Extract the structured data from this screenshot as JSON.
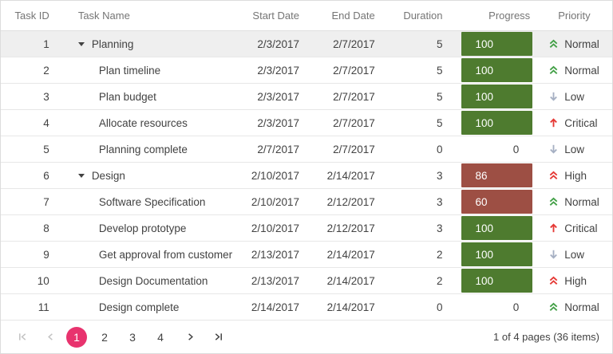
{
  "table": {
    "columns": {
      "id": {
        "label": "Task ID"
      },
      "name": {
        "label": "Task Name"
      },
      "start": {
        "label": "Start Date"
      },
      "end": {
        "label": "End Date"
      },
      "duration": {
        "label": "Duration"
      },
      "progress": {
        "label": "Progress"
      },
      "priority": {
        "label": "Priority"
      }
    },
    "rows": [
      {
        "id": "1",
        "name": "Planning",
        "parent": true,
        "expanded": true,
        "selected": true,
        "start": "2/3/2017",
        "end": "2/7/2017",
        "duration": "5",
        "progress": 100,
        "priority": "Normal"
      },
      {
        "id": "2",
        "name": "Plan timeline",
        "parent": false,
        "selected": false,
        "start": "2/3/2017",
        "end": "2/7/2017",
        "duration": "5",
        "progress": 100,
        "priority": "Normal"
      },
      {
        "id": "3",
        "name": "Plan budget",
        "parent": false,
        "selected": false,
        "start": "2/3/2017",
        "end": "2/7/2017",
        "duration": "5",
        "progress": 100,
        "priority": "Low"
      },
      {
        "id": "4",
        "name": "Allocate resources",
        "parent": false,
        "selected": false,
        "start": "2/3/2017",
        "end": "2/7/2017",
        "duration": "5",
        "progress": 100,
        "priority": "Critical"
      },
      {
        "id": "5",
        "name": "Planning complete",
        "parent": false,
        "selected": false,
        "start": "2/7/2017",
        "end": "2/7/2017",
        "duration": "0",
        "progress": 0,
        "priority": "Low"
      },
      {
        "id": "6",
        "name": "Design",
        "parent": true,
        "expanded": true,
        "selected": false,
        "start": "2/10/2017",
        "end": "2/14/2017",
        "duration": "3",
        "progress": 86,
        "priority": "High"
      },
      {
        "id": "7",
        "name": "Software Specification",
        "parent": false,
        "selected": false,
        "start": "2/10/2017",
        "end": "2/12/2017",
        "duration": "3",
        "progress": 60,
        "priority": "Normal"
      },
      {
        "id": "8",
        "name": "Develop prototype",
        "parent": false,
        "selected": false,
        "start": "2/10/2017",
        "end": "2/12/2017",
        "duration": "3",
        "progress": 100,
        "priority": "Critical"
      },
      {
        "id": "9",
        "name": "Get approval from customer",
        "parent": false,
        "selected": false,
        "start": "2/13/2017",
        "end": "2/14/2017",
        "duration": "2",
        "progress": 100,
        "priority": "Low"
      },
      {
        "id": "10",
        "name": "Design Documentation",
        "parent": false,
        "selected": false,
        "start": "2/13/2017",
        "end": "2/14/2017",
        "duration": "2",
        "progress": 100,
        "priority": "High"
      },
      {
        "id": "11",
        "name": "Design complete",
        "parent": false,
        "selected": false,
        "start": "2/14/2017",
        "end": "2/14/2017",
        "duration": "0",
        "progress": 0,
        "priority": "Normal"
      }
    ]
  },
  "priorities": {
    "Normal": {
      "label": "Normal",
      "icon": "double-chevron-up-icon",
      "color": "#43A047"
    },
    "High": {
      "label": "High",
      "icon": "double-chevron-up-icon",
      "color": "#E53935"
    },
    "Critical": {
      "label": "Critical",
      "icon": "arrow-up-icon",
      "color": "#E53935"
    },
    "Low": {
      "label": "Low",
      "icon": "arrow-down-icon",
      "color": "#A6B0C3"
    }
  },
  "progress_colors": {
    "complete": "#4E7B2F",
    "incomplete": "#9D4F44"
  },
  "selection": {
    "row_bg": "#efefef"
  },
  "pager": {
    "first_icon": "first-page-icon",
    "prev_icon": "prev-page-icon",
    "next_icon": "next-page-icon",
    "last_icon": "last-page-icon",
    "pages": [
      "1",
      "2",
      "3",
      "4"
    ],
    "current": "1",
    "active_color": "#E8336E",
    "info": "1 of 4 pages (36 items)"
  }
}
